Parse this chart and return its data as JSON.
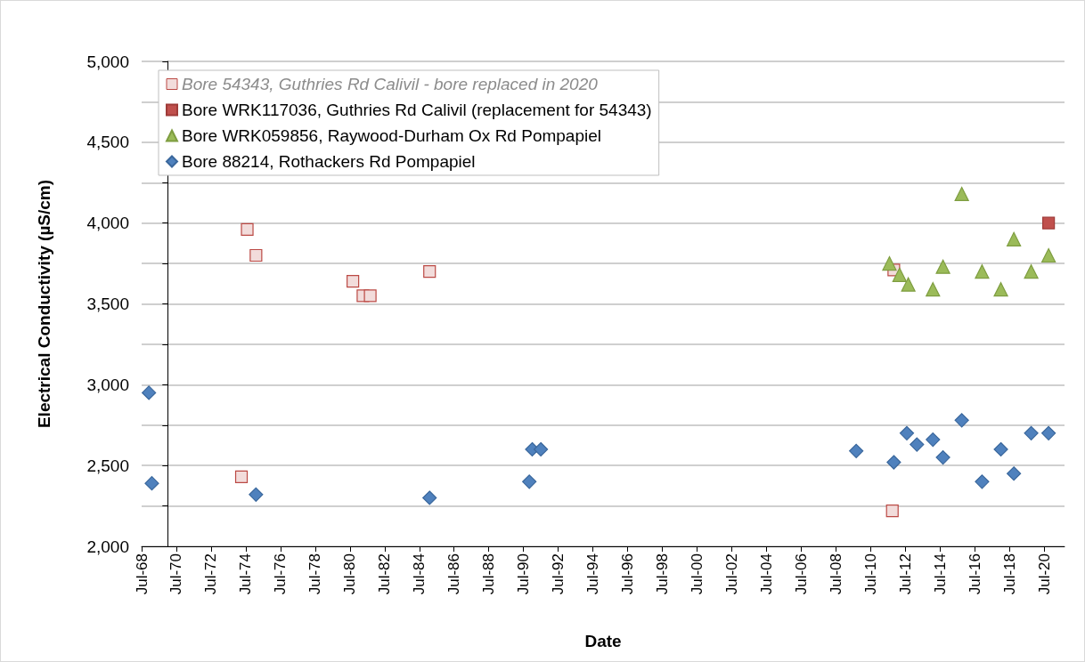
{
  "chart_data": {
    "type": "scatter",
    "xlabel": "Date",
    "ylabel": "Electrical Conductivity (µS/cm)",
    "xlim": [
      "1968-07",
      "2021-09"
    ],
    "xticks": [
      {
        "value": "1968-07",
        "label": "Jul-68"
      },
      {
        "value": "1970-07",
        "label": "Jul-70"
      },
      {
        "value": "1972-07",
        "label": "Jul-72"
      },
      {
        "value": "1974-07",
        "label": "Jul-74"
      },
      {
        "value": "1976-07",
        "label": "Jul-76"
      },
      {
        "value": "1978-07",
        "label": "Jul-78"
      },
      {
        "value": "1980-07",
        "label": "Jul-80"
      },
      {
        "value": "1982-07",
        "label": "Jul-82"
      },
      {
        "value": "1984-07",
        "label": "Jul-84"
      },
      {
        "value": "1986-07",
        "label": "Jul-86"
      },
      {
        "value": "1988-07",
        "label": "Jul-88"
      },
      {
        "value": "1990-07",
        "label": "Jul-90"
      },
      {
        "value": "1992-07",
        "label": "Jul-92"
      },
      {
        "value": "1994-07",
        "label": "Jul-94"
      },
      {
        "value": "1996-07",
        "label": "Jul-96"
      },
      {
        "value": "1998-07",
        "label": "Jul-98"
      },
      {
        "value": "2000-07",
        "label": "Jul-00"
      },
      {
        "value": "2002-07",
        "label": "Jul-02"
      },
      {
        "value": "2004-07",
        "label": "Jul-04"
      },
      {
        "value": "2006-07",
        "label": "Jul-06"
      },
      {
        "value": "2008-07",
        "label": "Jul-08"
      },
      {
        "value": "2010-07",
        "label": "Jul-10"
      },
      {
        "value": "2012-07",
        "label": "Jul-12"
      },
      {
        "value": "2014-07",
        "label": "Jul-14"
      },
      {
        "value": "2016-07",
        "label": "Jul-16"
      },
      {
        "value": "2018-07",
        "label": "Jul-18"
      },
      {
        "value": "2020-07",
        "label": "Jul-20"
      }
    ],
    "ylim": [
      2000,
      5000
    ],
    "yticks": [
      {
        "value": 2000,
        "label": "2,000"
      },
      {
        "value": 2250,
        "label": null
      },
      {
        "value": 2500,
        "label": "2,500"
      },
      {
        "value": 2750,
        "label": null
      },
      {
        "value": 3000,
        "label": "3,000"
      },
      {
        "value": 3250,
        "label": null
      },
      {
        "value": 3500,
        "label": "3,500"
      },
      {
        "value": 3750,
        "label": null
      },
      {
        "value": 4000,
        "label": "4,000"
      },
      {
        "value": 4250,
        "label": null
      },
      {
        "value": 4500,
        "label": "4,500"
      },
      {
        "value": 4750,
        "label": null
      },
      {
        "value": 5000,
        "label": "5,000"
      }
    ],
    "grid": "y",
    "legend": "top left",
    "series": [
      {
        "name": "Bore 54343, Guthries Rd Calivil - bore replaced in 2020",
        "color": "#f2dcdb",
        "marker": "square",
        "x": [
          "1974-04",
          "1974-08",
          "1975-02",
          "1980-09",
          "1981-04",
          "1981-09",
          "1985-02",
          "2011-10",
          "2011-11"
        ],
        "values": [
          2430,
          3960,
          3800,
          3640,
          3550,
          3550,
          3700,
          2220,
          3710
        ]
      },
      {
        "name": "Bore WRK117036, Guthries Rd Calivil (replacement for 54343)",
        "color": "#c0504d",
        "marker": "square",
        "x": [
          "2020-10"
        ],
        "values": [
          4000
        ]
      },
      {
        "name": "Bore WRK059856, Raywood-Durham Ox Rd Pompapiel",
        "color": "#9bbb59",
        "marker": "triangle",
        "x": [
          "2011-08",
          "2012-03",
          "2012-09",
          "2014-02",
          "2014-09",
          "2015-10",
          "2016-12",
          "2018-01",
          "2018-10",
          "2019-10",
          "2020-10"
        ],
        "values": [
          3750,
          3680,
          3620,
          3590,
          3730,
          4180,
          3700,
          3590,
          3900,
          3700,
          3800
        ]
      },
      {
        "name": "Bore 88214, Rothackers Rd Pompapiel",
        "color": "#4f81bd",
        "marker": "diamond",
        "x": [
          "1968-12",
          "1969-02",
          "1975-02",
          "1985-02",
          "1990-11",
          "1991-01",
          "1991-07",
          "2009-09",
          "2011-11",
          "2012-08",
          "2013-03",
          "2014-02",
          "2014-09",
          "2015-10",
          "2016-12",
          "2018-01",
          "2018-10",
          "2019-10",
          "2020-10"
        ],
        "values": [
          2950,
          2390,
          2320,
          2300,
          2400,
          2600,
          2600,
          2590,
          2520,
          2700,
          2630,
          2660,
          2550,
          2780,
          2400,
          2600,
          2450,
          2700,
          2700
        ]
      }
    ]
  }
}
